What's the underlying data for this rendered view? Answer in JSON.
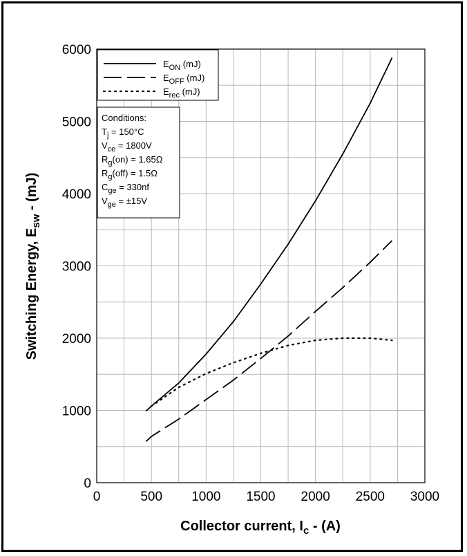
{
  "chart_data": {
    "type": "line",
    "xlabel": "Collector current, I",
    "xlabel_sub": "c",
    "xlabel_suffix": " - (A)",
    "ylabel": "Switching Energy, E",
    "ylabel_sub": "sw",
    "ylabel_suffix": " - (mJ)",
    "xlim": [
      0,
      3000
    ],
    "ylim": [
      0,
      6000
    ],
    "x_ticks": [
      0,
      500,
      1000,
      1500,
      2000,
      2500,
      3000
    ],
    "y_ticks": [
      0,
      1000,
      2000,
      3000,
      4000,
      5000,
      6000
    ],
    "grid": true,
    "legend_position": "top-left",
    "series": [
      {
        "name": "E_ON (mJ)",
        "label_main": "E",
        "label_sub": "ON",
        "label_unit": " (mJ)",
        "style": "solid",
        "x": [
          450,
          500,
          750,
          1000,
          1250,
          1500,
          1750,
          2000,
          2250,
          2500,
          2700
        ],
        "y": [
          990,
          1060,
          1380,
          1780,
          2230,
          2750,
          3300,
          3900,
          4550,
          5250,
          5880
        ]
      },
      {
        "name": "E_OFF (mJ)",
        "label_main": "E",
        "label_sub": "OFF",
        "label_unit": " (mJ)",
        "style": "dashed",
        "x": [
          450,
          500,
          750,
          1000,
          1250,
          1500,
          1750,
          2000,
          2250,
          2500,
          2700
        ],
        "y": [
          570,
          640,
          880,
          1150,
          1420,
          1720,
          2030,
          2370,
          2700,
          3050,
          3350
        ]
      },
      {
        "name": "E_rec (mJ)",
        "label_main": "E",
        "label_sub": "rec",
        "label_unit": " (mJ)",
        "style": "dotted",
        "x": [
          500,
          750,
          1000,
          1250,
          1500,
          1750,
          2000,
          2250,
          2500,
          2700
        ],
        "y": [
          1060,
          1320,
          1510,
          1660,
          1790,
          1900,
          1970,
          2000,
          2000,
          1970
        ]
      }
    ],
    "conditions": {
      "heading": "Conditions:",
      "lines": [
        {
          "main": "T",
          "sub": "j",
          "rest": " = 150°C"
        },
        {
          "main": "V",
          "sub": "ce",
          "rest": " = 1800V"
        },
        {
          "main": "R",
          "sub": "g",
          "rest": "(on) = 1.65Ω"
        },
        {
          "main": "R",
          "sub": "g",
          "rest": "(off) = 1.5Ω"
        },
        {
          "main": "C",
          "sub": "ge",
          "rest": " = 330nf"
        },
        {
          "main": "V",
          "sub": "ge",
          "rest": " = ±15V"
        }
      ]
    }
  }
}
